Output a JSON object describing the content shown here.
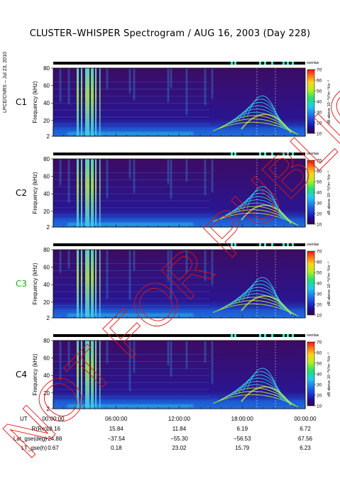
{
  "title": "CLUSTER–WHISPER Spectrogram / AUG 16, 2003 (Day 228)",
  "side_label": "LPCE/CNRS – Jul 23, 2010",
  "watermark": "NOT FOR PUBLICATION",
  "status_label": "overlaw",
  "colorbar": {
    "label": "dB above 10⁻⁸V²m⁻²Hz⁻¹",
    "ticks": [
      10,
      20,
      30,
      40,
      50,
      60,
      70
    ]
  },
  "chart_data": {
    "type": "heatmap",
    "title": "CLUSTER–WHISPER Spectrogram / AUG 16, 2003 (Day 228)",
    "panels": [
      {
        "name": "C1",
        "name_color": "#000000"
      },
      {
        "name": "C2",
        "name_color": "#000000"
      },
      {
        "name": "C3",
        "name_color": "#1aa81a"
      },
      {
        "name": "C4",
        "name_color": "#000000"
      }
    ],
    "ylabel": "Frequency (kHz)",
    "yticks": [
      2,
      20,
      40,
      60,
      80
    ],
    "ylim": [
      2,
      80
    ],
    "clim": [
      10,
      70
    ],
    "x_header": "UT",
    "x_ticks": [
      "00:00:00",
      "06:00:00",
      "12:00:00",
      "18:00:00",
      "00:00:00"
    ],
    "ephemeris": [
      {
        "label": "R(Re)",
        "values": [
          "18.16",
          "15.84",
          "11.84",
          "6.19",
          "6.72"
        ]
      },
      {
        "label": "Lat_gse(deg)",
        "values": [
          "−24.88",
          "−37.54",
          "−55.30",
          "−56.53",
          "67.56"
        ]
      },
      {
        "label": "LT_gse(h)",
        "values": [
          "0.67",
          "0.18",
          "23.02",
          "15.79",
          "6.23"
        ]
      }
    ]
  }
}
